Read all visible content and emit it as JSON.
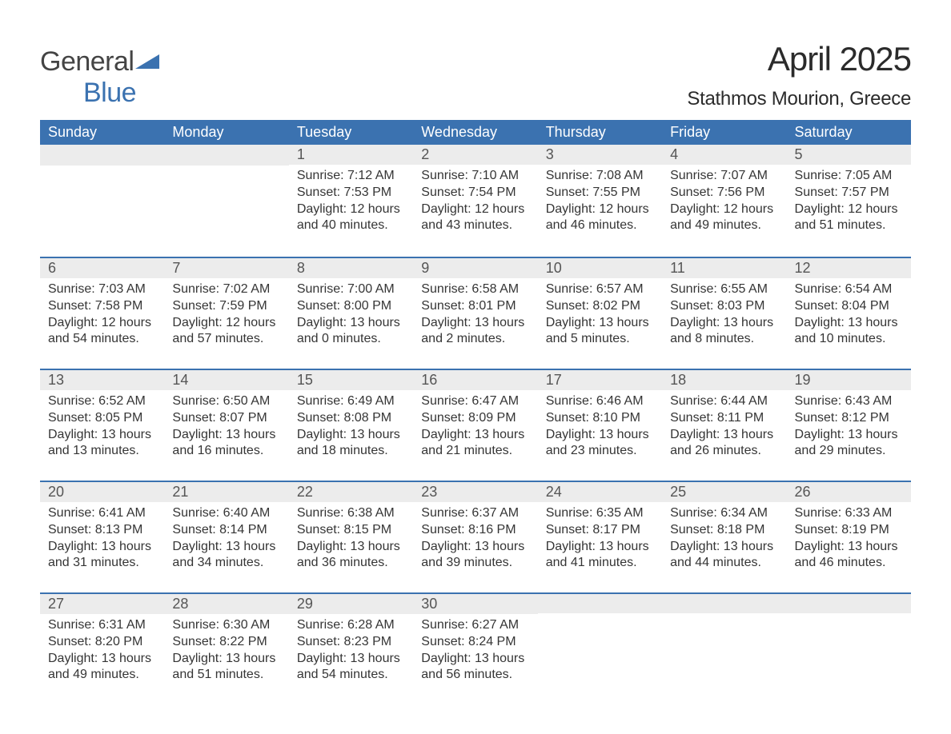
{
  "logo": {
    "main": "General",
    "sub": "Blue"
  },
  "title": "April 2025",
  "location": "Stathmos Mourion, Greece",
  "colors": {
    "header_bg": "#3b72b0",
    "header_text": "#ffffff",
    "daybar_bg": "#ececec",
    "daybar_border": "#3b72b0",
    "body_text": "#353535",
    "page_bg": "#ffffff",
    "logo_main": "#444444",
    "logo_sub": "#3b72b0"
  },
  "typography": {
    "title_fontsize": 42,
    "location_fontsize": 24,
    "header_fontsize": 18,
    "daynum_fontsize": 18,
    "body_fontsize": 16,
    "logo_fontsize": 34
  },
  "day_headers": [
    "Sunday",
    "Monday",
    "Tuesday",
    "Wednesday",
    "Thursday",
    "Friday",
    "Saturday"
  ],
  "weeks": [
    [
      {
        "n": "",
        "sunrise": "",
        "sunset": "",
        "daylight": ""
      },
      {
        "n": "",
        "sunrise": "",
        "sunset": "",
        "daylight": ""
      },
      {
        "n": "1",
        "sunrise": "Sunrise: 7:12 AM",
        "sunset": "Sunset: 7:53 PM",
        "daylight": "Daylight: 12 hours and 40 minutes."
      },
      {
        "n": "2",
        "sunrise": "Sunrise: 7:10 AM",
        "sunset": "Sunset: 7:54 PM",
        "daylight": "Daylight: 12 hours and 43 minutes."
      },
      {
        "n": "3",
        "sunrise": "Sunrise: 7:08 AM",
        "sunset": "Sunset: 7:55 PM",
        "daylight": "Daylight: 12 hours and 46 minutes."
      },
      {
        "n": "4",
        "sunrise": "Sunrise: 7:07 AM",
        "sunset": "Sunset: 7:56 PM",
        "daylight": "Daylight: 12 hours and 49 minutes."
      },
      {
        "n": "5",
        "sunrise": "Sunrise: 7:05 AM",
        "sunset": "Sunset: 7:57 PM",
        "daylight": "Daylight: 12 hours and 51 minutes."
      }
    ],
    [
      {
        "n": "6",
        "sunrise": "Sunrise: 7:03 AM",
        "sunset": "Sunset: 7:58 PM",
        "daylight": "Daylight: 12 hours and 54 minutes."
      },
      {
        "n": "7",
        "sunrise": "Sunrise: 7:02 AM",
        "sunset": "Sunset: 7:59 PM",
        "daylight": "Daylight: 12 hours and 57 minutes."
      },
      {
        "n": "8",
        "sunrise": "Sunrise: 7:00 AM",
        "sunset": "Sunset: 8:00 PM",
        "daylight": "Daylight: 13 hours and 0 minutes."
      },
      {
        "n": "9",
        "sunrise": "Sunrise: 6:58 AM",
        "sunset": "Sunset: 8:01 PM",
        "daylight": "Daylight: 13 hours and 2 minutes."
      },
      {
        "n": "10",
        "sunrise": "Sunrise: 6:57 AM",
        "sunset": "Sunset: 8:02 PM",
        "daylight": "Daylight: 13 hours and 5 minutes."
      },
      {
        "n": "11",
        "sunrise": "Sunrise: 6:55 AM",
        "sunset": "Sunset: 8:03 PM",
        "daylight": "Daylight: 13 hours and 8 minutes."
      },
      {
        "n": "12",
        "sunrise": "Sunrise: 6:54 AM",
        "sunset": "Sunset: 8:04 PM",
        "daylight": "Daylight: 13 hours and 10 minutes."
      }
    ],
    [
      {
        "n": "13",
        "sunrise": "Sunrise: 6:52 AM",
        "sunset": "Sunset: 8:05 PM",
        "daylight": "Daylight: 13 hours and 13 minutes."
      },
      {
        "n": "14",
        "sunrise": "Sunrise: 6:50 AM",
        "sunset": "Sunset: 8:07 PM",
        "daylight": "Daylight: 13 hours and 16 minutes."
      },
      {
        "n": "15",
        "sunrise": "Sunrise: 6:49 AM",
        "sunset": "Sunset: 8:08 PM",
        "daylight": "Daylight: 13 hours and 18 minutes."
      },
      {
        "n": "16",
        "sunrise": "Sunrise: 6:47 AM",
        "sunset": "Sunset: 8:09 PM",
        "daylight": "Daylight: 13 hours and 21 minutes."
      },
      {
        "n": "17",
        "sunrise": "Sunrise: 6:46 AM",
        "sunset": "Sunset: 8:10 PM",
        "daylight": "Daylight: 13 hours and 23 minutes."
      },
      {
        "n": "18",
        "sunrise": "Sunrise: 6:44 AM",
        "sunset": "Sunset: 8:11 PM",
        "daylight": "Daylight: 13 hours and 26 minutes."
      },
      {
        "n": "19",
        "sunrise": "Sunrise: 6:43 AM",
        "sunset": "Sunset: 8:12 PM",
        "daylight": "Daylight: 13 hours and 29 minutes."
      }
    ],
    [
      {
        "n": "20",
        "sunrise": "Sunrise: 6:41 AM",
        "sunset": "Sunset: 8:13 PM",
        "daylight": "Daylight: 13 hours and 31 minutes."
      },
      {
        "n": "21",
        "sunrise": "Sunrise: 6:40 AM",
        "sunset": "Sunset: 8:14 PM",
        "daylight": "Daylight: 13 hours and 34 minutes."
      },
      {
        "n": "22",
        "sunrise": "Sunrise: 6:38 AM",
        "sunset": "Sunset: 8:15 PM",
        "daylight": "Daylight: 13 hours and 36 minutes."
      },
      {
        "n": "23",
        "sunrise": "Sunrise: 6:37 AM",
        "sunset": "Sunset: 8:16 PM",
        "daylight": "Daylight: 13 hours and 39 minutes."
      },
      {
        "n": "24",
        "sunrise": "Sunrise: 6:35 AM",
        "sunset": "Sunset: 8:17 PM",
        "daylight": "Daylight: 13 hours and 41 minutes."
      },
      {
        "n": "25",
        "sunrise": "Sunrise: 6:34 AM",
        "sunset": "Sunset: 8:18 PM",
        "daylight": "Daylight: 13 hours and 44 minutes."
      },
      {
        "n": "26",
        "sunrise": "Sunrise: 6:33 AM",
        "sunset": "Sunset: 8:19 PM",
        "daylight": "Daylight: 13 hours and 46 minutes."
      }
    ],
    [
      {
        "n": "27",
        "sunrise": "Sunrise: 6:31 AM",
        "sunset": "Sunset: 8:20 PM",
        "daylight": "Daylight: 13 hours and 49 minutes."
      },
      {
        "n": "28",
        "sunrise": "Sunrise: 6:30 AM",
        "sunset": "Sunset: 8:22 PM",
        "daylight": "Daylight: 13 hours and 51 minutes."
      },
      {
        "n": "29",
        "sunrise": "Sunrise: 6:28 AM",
        "sunset": "Sunset: 8:23 PM",
        "daylight": "Daylight: 13 hours and 54 minutes."
      },
      {
        "n": "30",
        "sunrise": "Sunrise: 6:27 AM",
        "sunset": "Sunset: 8:24 PM",
        "daylight": "Daylight: 13 hours and 56 minutes."
      },
      {
        "n": "",
        "sunrise": "",
        "sunset": "",
        "daylight": ""
      },
      {
        "n": "",
        "sunrise": "",
        "sunset": "",
        "daylight": ""
      },
      {
        "n": "",
        "sunrise": "",
        "sunset": "",
        "daylight": ""
      }
    ]
  ]
}
